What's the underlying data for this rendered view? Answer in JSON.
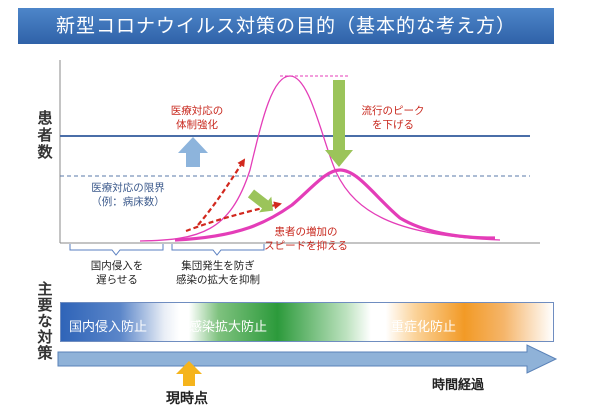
{
  "title": "新型コロナウイルス対策の目的（基本的な考え方）",
  "y_axis_label": [
    "患",
    "者",
    "数"
  ],
  "labels": {
    "medical_strengthen": [
      "医療対応の",
      "体制強化"
    ],
    "peak_lower": [
      "流行のピーク",
      "を下げる"
    ],
    "medical_limit": [
      "医療対応の限界",
      "（例：病床数）"
    ],
    "slow_increase": [
      "患者の増加の",
      "スピードを抑える"
    ],
    "delay_entry": [
      "国内侵入を",
      "遅らせる"
    ],
    "prevent_cluster": [
      "集団発生を防ぎ",
      "感染の拡大を抑制"
    ]
  },
  "measures_label": [
    "主",
    "要",
    "な",
    "対",
    "策"
  ],
  "measures": [
    "国内侵入防止",
    "感染拡大防止",
    "重症化防止"
  ],
  "timeline": {
    "now": "現時点",
    "elapsed": "時間経過"
  },
  "colors": {
    "title_bar": "#3a6fb5",
    "capacity_line": "#4a6ea8",
    "curve": "#e43db8",
    "red_arrow": "#d2281e",
    "green_arrow": "#9bc45a",
    "blue_arrow": "#8db4dc",
    "now_arrow": "#f5b41c"
  }
}
